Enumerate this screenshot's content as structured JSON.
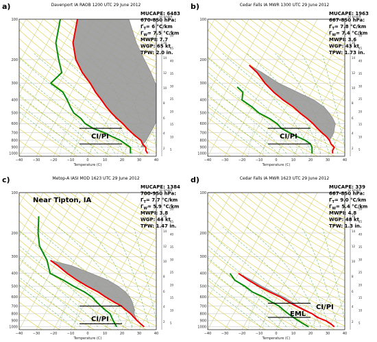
{
  "colors": {
    "temperature": "#ee0000",
    "dewpoint": "#0a8a0a",
    "parcel": "#8c8c8c",
    "cape_fill": "#9a9a9a",
    "isotherm": "#c8d08a",
    "dry_adiabat": "#e2cd3a",
    "moist_adiabat": "#5fb85a",
    "mixing_ratio": "#5aa05a"
  },
  "axis": {
    "xlabel": "Temperature (C)",
    "right_units": "kn  km/kft",
    "x_ticks": [
      "−40",
      "−30",
      "−20",
      "−10",
      "0",
      "10",
      "20",
      "30",
      "40"
    ],
    "p_ticks": [
      "100",
      "200",
      "300",
      "400",
      "500",
      "600",
      "700",
      "800",
      "900",
      "1000"
    ],
    "km_ticks": [
      "2",
      "4",
      "6",
      "8",
      "10",
      "12",
      "14",
      "16"
    ],
    "kft_ticks": [
      "5",
      "10",
      "15",
      "20",
      "25",
      "30",
      "35",
      "40",
      "45",
      "50"
    ]
  },
  "panels": [
    {
      "id": "a",
      "label": "a)",
      "title": "Davenport IA RAOB 1200 UTC 29 June 2012",
      "location": "",
      "stats": [
        "MUCAPE: 6483",
        "670-850 hPa:",
        "Γ",
        "Γ",
        "MWPI: 7.7",
        "WGP: 65 kt",
        "TPW: 2.0 in."
      ],
      "gamma_t": "= 6 °C/km",
      "gamma_w": "= 7.5 °C/km",
      "annotations": [
        "CI/PI"
      ],
      "temp_profile": [
        [
          -50,
          100
        ],
        [
          -45,
          150
        ],
        [
          -38,
          200
        ],
        [
          -30,
          250
        ],
        [
          -22,
          300
        ],
        [
          -16,
          350
        ],
        [
          -10,
          400
        ],
        [
          -5,
          450
        ],
        [
          0,
          500
        ],
        [
          5,
          550
        ],
        [
          10,
          600
        ],
        [
          14,
          650
        ],
        [
          18,
          700
        ],
        [
          22,
          750
        ],
        [
          26,
          800
        ],
        [
          28,
          850
        ],
        [
          31,
          900
        ],
        [
          32,
          950
        ],
        [
          34,
          1000
        ]
      ],
      "dew_profile": [
        [
          -60,
          100
        ],
        [
          -55,
          150
        ],
        [
          -48,
          200
        ],
        [
          -42,
          250
        ],
        [
          -45,
          300
        ],
        [
          -35,
          350
        ],
        [
          -30,
          400
        ],
        [
          -26,
          450
        ],
        [
          -22,
          500
        ],
        [
          -16,
          550
        ],
        [
          -12,
          600
        ],
        [
          -6,
          650
        ],
        [
          2,
          700
        ],
        [
          8,
          750
        ],
        [
          14,
          800
        ],
        [
          18,
          850
        ],
        [
          22,
          900
        ],
        [
          23,
          950
        ],
        [
          24,
          1000
        ]
      ],
      "parcel_profile": [
        [
          -20,
          100
        ],
        [
          -8,
          150
        ],
        [
          2,
          200
        ],
        [
          10,
          250
        ],
        [
          16,
          300
        ],
        [
          22,
          350
        ],
        [
          25,
          400
        ],
        [
          27,
          450
        ],
        [
          28,
          500
        ],
        [
          29,
          600
        ],
        [
          29,
          700
        ],
        [
          29,
          800
        ],
        [
          28,
          900
        ]
      ],
      "ci_lines": [
        650,
        850
      ]
    },
    {
      "id": "b",
      "label": "b)",
      "title": "Cedar Falls IA MWR 1300 UTC 29 June 2012",
      "location": "",
      "stats": [
        "MUCAPE: 1963",
        "667-850 hPa:",
        "Γ",
        "Γ",
        "MWPI:  3.6",
        "WGP:  43 kt",
        "TPW:  1.73 in."
      ],
      "gamma_t": "= 7.8 °C/km",
      "gamma_w": "= 7.4 °C/km",
      "annotations": [
        "CI/PI"
      ],
      "temp_profile": [
        [
          -45,
          220
        ],
        [
          -38,
          250
        ],
        [
          -30,
          300
        ],
        [
          -22,
          350
        ],
        [
          -14,
          400
        ],
        [
          -6,
          450
        ],
        [
          0,
          500
        ],
        [
          6,
          550
        ],
        [
          11,
          600
        ],
        [
          15,
          650
        ],
        [
          19,
          700
        ],
        [
          23,
          750
        ],
        [
          26,
          800
        ],
        [
          28,
          850
        ],
        [
          31,
          900
        ],
        [
          31,
          950
        ],
        [
          32,
          1000
        ]
      ],
      "dew_profile": [
        [
          -45,
          320
        ],
        [
          -40,
          350
        ],
        [
          -38,
          400
        ],
        [
          -30,
          450
        ],
        [
          -24,
          500
        ],
        [
          -16,
          550
        ],
        [
          -10,
          600
        ],
        [
          -6,
          650
        ],
        [
          0,
          700
        ],
        [
          6,
          750
        ],
        [
          12,
          800
        ],
        [
          16,
          850
        ],
        [
          18,
          900
        ],
        [
          19,
          950
        ],
        [
          20,
          1000
        ]
      ],
      "parcel_profile": [
        [
          -45,
          220
        ],
        [
          -35,
          250
        ],
        [
          -22,
          300
        ],
        [
          -8,
          350
        ],
        [
          4,
          400
        ],
        [
          12,
          450
        ],
        [
          17,
          500
        ],
        [
          21,
          550
        ],
        [
          24,
          600
        ],
        [
          25,
          650
        ],
        [
          26,
          700
        ],
        [
          26,
          800
        ]
      ],
      "ci_lines": [
        650,
        850
      ]
    },
    {
      "id": "c",
      "label": "c)",
      "title": "Metop-A IASI MOD 1623 UTC 29 June 2012",
      "location": "Near Tipton, IA",
      "stats": [
        "MUCAPE: 1384",
        "700-950 hPa:",
        "Γ",
        "Γ",
        "MWPI:  3.8",
        "WGP:  44 kt",
        "TPW:  1.47 in."
      ],
      "gamma_t": "= 7.7 °C/km",
      "gamma_w": "= 5.9 °C/km",
      "annotations": [
        "CI/PI"
      ],
      "temp_profile": [
        [
          -44,
          320
        ],
        [
          -38,
          350
        ],
        [
          -30,
          400
        ],
        [
          -22,
          450
        ],
        [
          -14,
          500
        ],
        [
          -6,
          550
        ],
        [
          0,
          600
        ],
        [
          6,
          650
        ],
        [
          12,
          700
        ],
        [
          16,
          750
        ],
        [
          20,
          800
        ],
        [
          23,
          850
        ],
        [
          26,
          900
        ],
        [
          29,
          950
        ],
        [
          32,
          1000
        ]
      ],
      "dew_profile": [
        [
          -65,
          150
        ],
        [
          -60,
          200
        ],
        [
          -55,
          250
        ],
        [
          -46,
          320
        ],
        [
          -40,
          400
        ],
        [
          -30,
          450
        ],
        [
          -22,
          500
        ],
        [
          -14,
          550
        ],
        [
          -8,
          600
        ],
        [
          -4,
          650
        ],
        [
          0,
          700
        ],
        [
          4,
          750
        ],
        [
          8,
          800
        ],
        [
          10,
          850
        ],
        [
          12,
          900
        ],
        [
          14,
          950
        ],
        [
          16,
          1000
        ]
      ],
      "parcel_profile": [
        [
          -44,
          320
        ],
        [
          -30,
          350
        ],
        [
          -16,
          400
        ],
        [
          -4,
          450
        ],
        [
          4,
          500
        ],
        [
          10,
          550
        ],
        [
          14,
          600
        ],
        [
          17,
          650
        ],
        [
          19,
          700
        ],
        [
          21,
          750
        ],
        [
          22,
          800
        ],
        [
          24,
          850
        ],
        [
          26,
          900
        ]
      ],
      "ci_lines": [
        700,
        950
      ]
    },
    {
      "id": "d",
      "label": "d)",
      "title": "Cedar Falls IA MWR 1623 UTC 29 June 2012",
      "location": "",
      "stats": [
        "MUCAPE: 339",
        "667-850 hPa:",
        "Γ",
        "Γ",
        "MWPI: 4.8",
        "WGP: 48 kt",
        "TPW:  1.3 in."
      ],
      "gamma_t": "= 9.0 °C/km",
      "gamma_w": "= 5.4 °C/km",
      "annotations": [
        "EML",
        "CI/PI"
      ],
      "temp_profile": [
        [
          -40,
          400
        ],
        [
          -32,
          450
        ],
        [
          -24,
          500
        ],
        [
          -16,
          550
        ],
        [
          -8,
          600
        ],
        [
          -2,
          650
        ],
        [
          4,
          700
        ],
        [
          10,
          750
        ],
        [
          16,
          800
        ],
        [
          20,
          850
        ],
        [
          26,
          900
        ],
        [
          30,
          950
        ],
        [
          33,
          1000
        ]
      ],
      "dew_profile": [
        [
          -45,
          400
        ],
        [
          -40,
          450
        ],
        [
          -32,
          500
        ],
        [
          -26,
          550
        ],
        [
          -18,
          600
        ],
        [
          -12,
          650
        ],
        [
          -6,
          700
        ],
        [
          -2,
          750
        ],
        [
          2,
          800
        ],
        [
          6,
          850
        ],
        [
          10,
          900
        ],
        [
          14,
          950
        ],
        [
          18,
          1000
        ]
      ],
      "parcel_profile": [
        [
          -40,
          400
        ],
        [
          -30,
          450
        ],
        [
          -22,
          500
        ],
        [
          -14,
          550
        ],
        [
          -6,
          600
        ],
        [
          0,
          650
        ],
        [
          5,
          700
        ],
        [
          11,
          750
        ],
        [
          16,
          800
        ],
        [
          21,
          850
        ]
      ],
      "ci_lines": [
        667,
        850
      ]
    }
  ]
}
